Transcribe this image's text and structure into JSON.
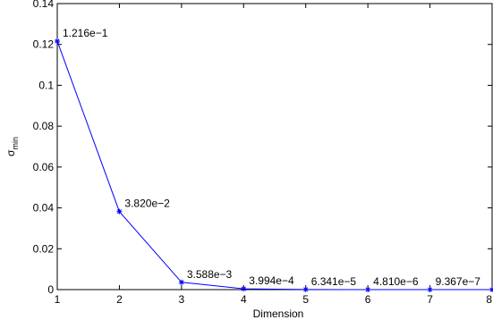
{
  "chart_data": {
    "type": "line",
    "title": "",
    "xlabel": "Dimension",
    "ylabel": "σ",
    "ylabel_subscript": "min",
    "xlim": [
      1,
      8
    ],
    "ylim": [
      0,
      0.14
    ],
    "x_ticks": [
      1,
      2,
      3,
      4,
      5,
      6,
      7,
      8
    ],
    "x_tick_labels": [
      "1",
      "2",
      "3",
      "4",
      "5",
      "6",
      "7",
      "8"
    ],
    "y_ticks": [
      0,
      0.02,
      0.04,
      0.06,
      0.08,
      0.1,
      0.12,
      0.14
    ],
    "y_tick_labels": [
      "0",
      "0.02",
      "0.04",
      "0.06",
      "0.08",
      "0.1",
      "0.12",
      "0.14"
    ],
    "grid": false,
    "legend": "none",
    "series": [
      {
        "color": "#0000ff",
        "marker": "asterisk",
        "x": [
          1,
          2,
          3,
          4,
          5,
          6,
          7,
          8
        ],
        "y": [
          0.1216,
          0.0382,
          0.003588,
          0.0003994,
          6.341e-05,
          4.81e-06,
          9.367e-07,
          0
        ],
        "labels": [
          "1.216e−1",
          "3.820e−2",
          "3.588e−3",
          "3.994e−4",
          "6.341e−5",
          "4.810e−6",
          "9.367e−7",
          ""
        ]
      }
    ]
  }
}
